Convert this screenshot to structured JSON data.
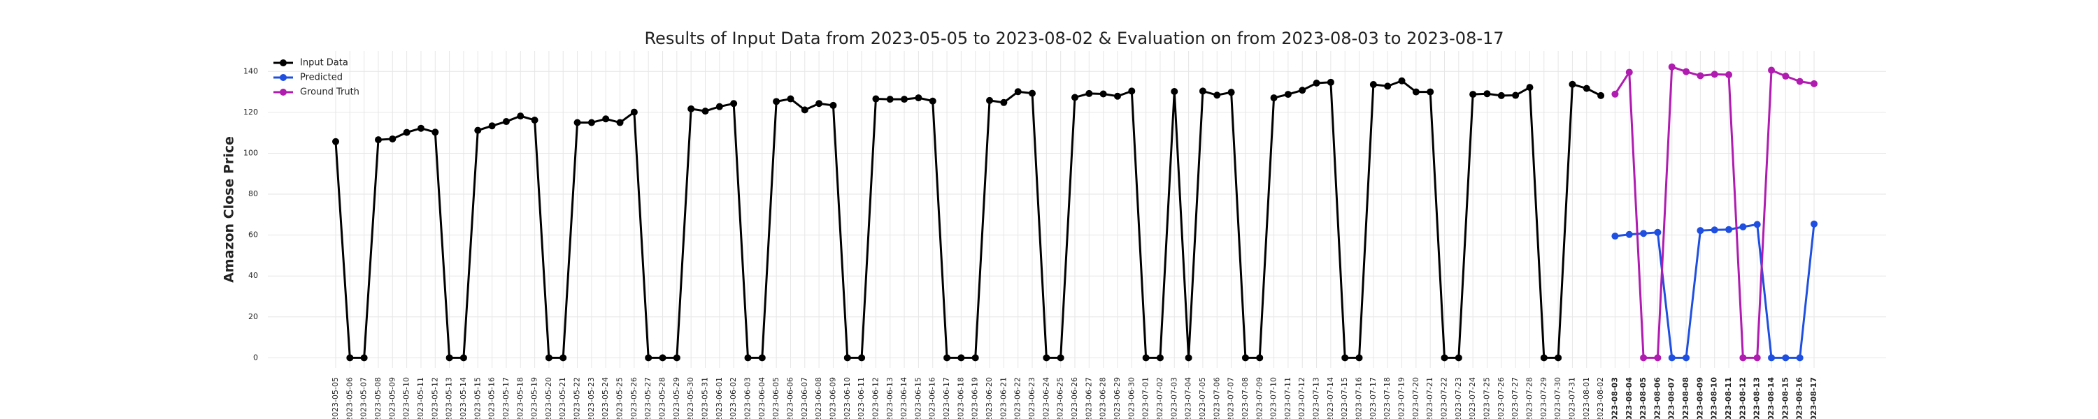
{
  "chart_data": {
    "type": "line",
    "title": "Results of Input Data from 2023-05-05 to 2023-08-02 & Evaluation on from 2023-08-03 to 2023-08-17",
    "ylabel": "Amazon Close Price",
    "categories": [
      "2023-05-05",
      "2023-05-06",
      "2023-05-07",
      "2023-05-08",
      "2023-05-09",
      "2023-05-10",
      "2023-05-11",
      "2023-05-12",
      "2023-05-13",
      "2023-05-14",
      "2023-05-15",
      "2023-05-16",
      "2023-05-17",
      "2023-05-18",
      "2023-05-19",
      "2023-05-20",
      "2023-05-21",
      "2023-05-22",
      "2023-05-23",
      "2023-05-24",
      "2023-05-25",
      "2023-05-26",
      "2023-05-27",
      "2023-05-28",
      "2023-05-29",
      "2023-05-30",
      "2023-05-31",
      "2023-06-01",
      "2023-06-02",
      "2023-06-03",
      "2023-06-04",
      "2023-06-05",
      "2023-06-06",
      "2023-06-07",
      "2023-06-08",
      "2023-06-09",
      "2023-06-10",
      "2023-06-11",
      "2023-06-12",
      "2023-06-13",
      "2023-06-14",
      "2023-06-15",
      "2023-06-16",
      "2023-06-17",
      "2023-06-18",
      "2023-06-19",
      "2023-06-20",
      "2023-06-21",
      "2023-06-22",
      "2023-06-23",
      "2023-06-24",
      "2023-06-25",
      "2023-06-26",
      "2023-06-27",
      "2023-06-28",
      "2023-06-29",
      "2023-06-30",
      "2023-07-01",
      "2023-07-02",
      "2023-07-03",
      "2023-07-04",
      "2023-07-05",
      "2023-07-06",
      "2023-07-07",
      "2023-07-08",
      "2023-07-09",
      "2023-07-10",
      "2023-07-11",
      "2023-07-12",
      "2023-07-13",
      "2023-07-14",
      "2023-07-15",
      "2023-07-16",
      "2023-07-17",
      "2023-07-18",
      "2023-07-19",
      "2023-07-20",
      "2023-07-21",
      "2023-07-22",
      "2023-07-23",
      "2023-07-24",
      "2023-07-25",
      "2023-07-26",
      "2023-07-27",
      "2023-07-28",
      "2023-07-29",
      "2023-07-30",
      "2023-07-31",
      "2023-08-01",
      "2023-08-02",
      "2023-08-03",
      "2023-08-04",
      "2023-08-05",
      "2023-08-06",
      "2023-08-07",
      "2023-08-08",
      "2023-08-09",
      "2023-08-10",
      "2023-08-11",
      "2023-08-12",
      "2023-08-13",
      "2023-08-14",
      "2023-08-15",
      "2023-08-16",
      "2023-08-17"
    ],
    "series": [
      {
        "name": "Input Data",
        "color": "#000000",
        "values": [
          105.7,
          0,
          0,
          106.6,
          107.0,
          110.2,
          112.2,
          110.3,
          0,
          0,
          111.2,
          113.4,
          115.5,
          118.2,
          116.2,
          0,
          0,
          115.0,
          115.0,
          116.8,
          115.0,
          120.1,
          0,
          0,
          0,
          121.7,
          120.6,
          122.8,
          124.3,
          0,
          0,
          125.3,
          126.6,
          121.2,
          124.3,
          123.4,
          0,
          0,
          126.6,
          126.4,
          126.4,
          127.1,
          125.5,
          0,
          0,
          0,
          125.8,
          124.8,
          130.1,
          129.3,
          0,
          0,
          127.3,
          129.2,
          129.0,
          127.9,
          130.4,
          0,
          0,
          130.2,
          0,
          130.4,
          128.4,
          129.8,
          0,
          0,
          127.1,
          128.8,
          130.8,
          134.3,
          134.7,
          0,
          0,
          133.6,
          132.8,
          135.4,
          130.0,
          130.0,
          0,
          0,
          128.8,
          129.1,
          128.2,
          128.3,
          132.2,
          0,
          0,
          133.7,
          131.7,
          128.2,
          null,
          null,
          null,
          null,
          null,
          null,
          null,
          null,
          null,
          null,
          null,
          null,
          null,
          null,
          null
        ]
      },
      {
        "name": "Predicted",
        "color": "#1f4fe0",
        "values": [
          null,
          null,
          null,
          null,
          null,
          null,
          null,
          null,
          null,
          null,
          null,
          null,
          null,
          null,
          null,
          null,
          null,
          null,
          null,
          null,
          null,
          null,
          null,
          null,
          null,
          null,
          null,
          null,
          null,
          null,
          null,
          null,
          null,
          null,
          null,
          null,
          null,
          null,
          null,
          null,
          null,
          null,
          null,
          null,
          null,
          null,
          null,
          null,
          null,
          null,
          null,
          null,
          null,
          null,
          null,
          null,
          null,
          null,
          null,
          null,
          null,
          null,
          null,
          null,
          null,
          null,
          null,
          null,
          null,
          null,
          null,
          null,
          null,
          null,
          null,
          null,
          null,
          null,
          null,
          null,
          null,
          null,
          null,
          null,
          null,
          null,
          null,
          null,
          null,
          null,
          59.5,
          60.3,
          60.8,
          61.3,
          0,
          0,
          62.2,
          62.5,
          62.7,
          64.0,
          65.2,
          0,
          0,
          0,
          65.4
        ]
      },
      {
        "name": "Ground Truth",
        "color": "#b01cb0",
        "values": [
          null,
          null,
          null,
          null,
          null,
          null,
          null,
          null,
          null,
          null,
          null,
          null,
          null,
          null,
          null,
          null,
          null,
          null,
          null,
          null,
          null,
          null,
          null,
          null,
          null,
          null,
          null,
          null,
          null,
          null,
          null,
          null,
          null,
          null,
          null,
          null,
          null,
          null,
          null,
          null,
          null,
          null,
          null,
          null,
          null,
          null,
          null,
          null,
          null,
          null,
          null,
          null,
          null,
          null,
          null,
          null,
          null,
          null,
          null,
          null,
          null,
          null,
          null,
          null,
          null,
          null,
          null,
          null,
          null,
          null,
          null,
          null,
          null,
          null,
          null,
          null,
          null,
          null,
          null,
          null,
          null,
          null,
          null,
          null,
          null,
          null,
          null,
          null,
          null,
          null,
          128.9,
          139.6,
          0,
          0,
          142.2,
          139.9,
          137.9,
          138.6,
          138.4,
          0,
          0,
          140.6,
          137.7,
          135.1,
          134.0
        ]
      }
    ],
    "ylim": [
      -5,
      150
    ],
    "yticks": [
      0,
      20,
      40,
      60,
      80,
      100,
      120,
      140
    ],
    "grid": true,
    "legend": "upper left"
  }
}
